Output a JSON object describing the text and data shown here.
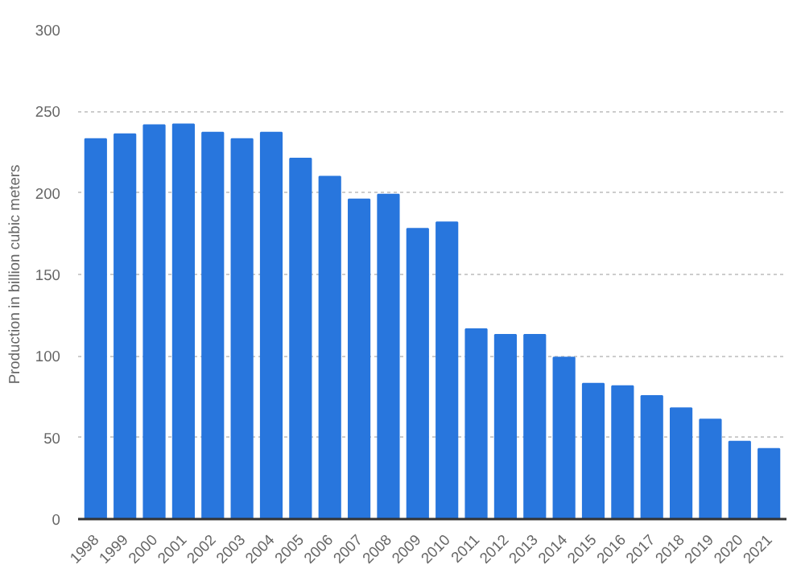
{
  "chart_data": {
    "type": "bar",
    "ylabel": "Production in billion cubic meters",
    "categories": [
      "1998",
      "1999",
      "2000",
      "2001",
      "2002",
      "2003",
      "2004",
      "2005",
      "2006",
      "2007",
      "2008",
      "2009",
      "2010",
      "2011",
      "2012",
      "2013",
      "2014",
      "2015",
      "2016",
      "2017",
      "2018",
      "2019",
      "2020",
      "2021"
    ],
    "values": [
      233,
      236,
      241.5,
      242,
      237,
      233,
      237,
      221,
      210,
      196,
      199,
      178,
      182,
      116.5,
      113,
      113,
      99,
      83,
      81.5,
      75.5,
      68,
      61,
      47.5,
      43
    ],
    "color": "#2876dd",
    "ylim": [
      0,
      300
    ],
    "yticks": [
      0,
      50,
      100,
      150,
      200,
      250,
      300
    ],
    "grid": "y"
  }
}
